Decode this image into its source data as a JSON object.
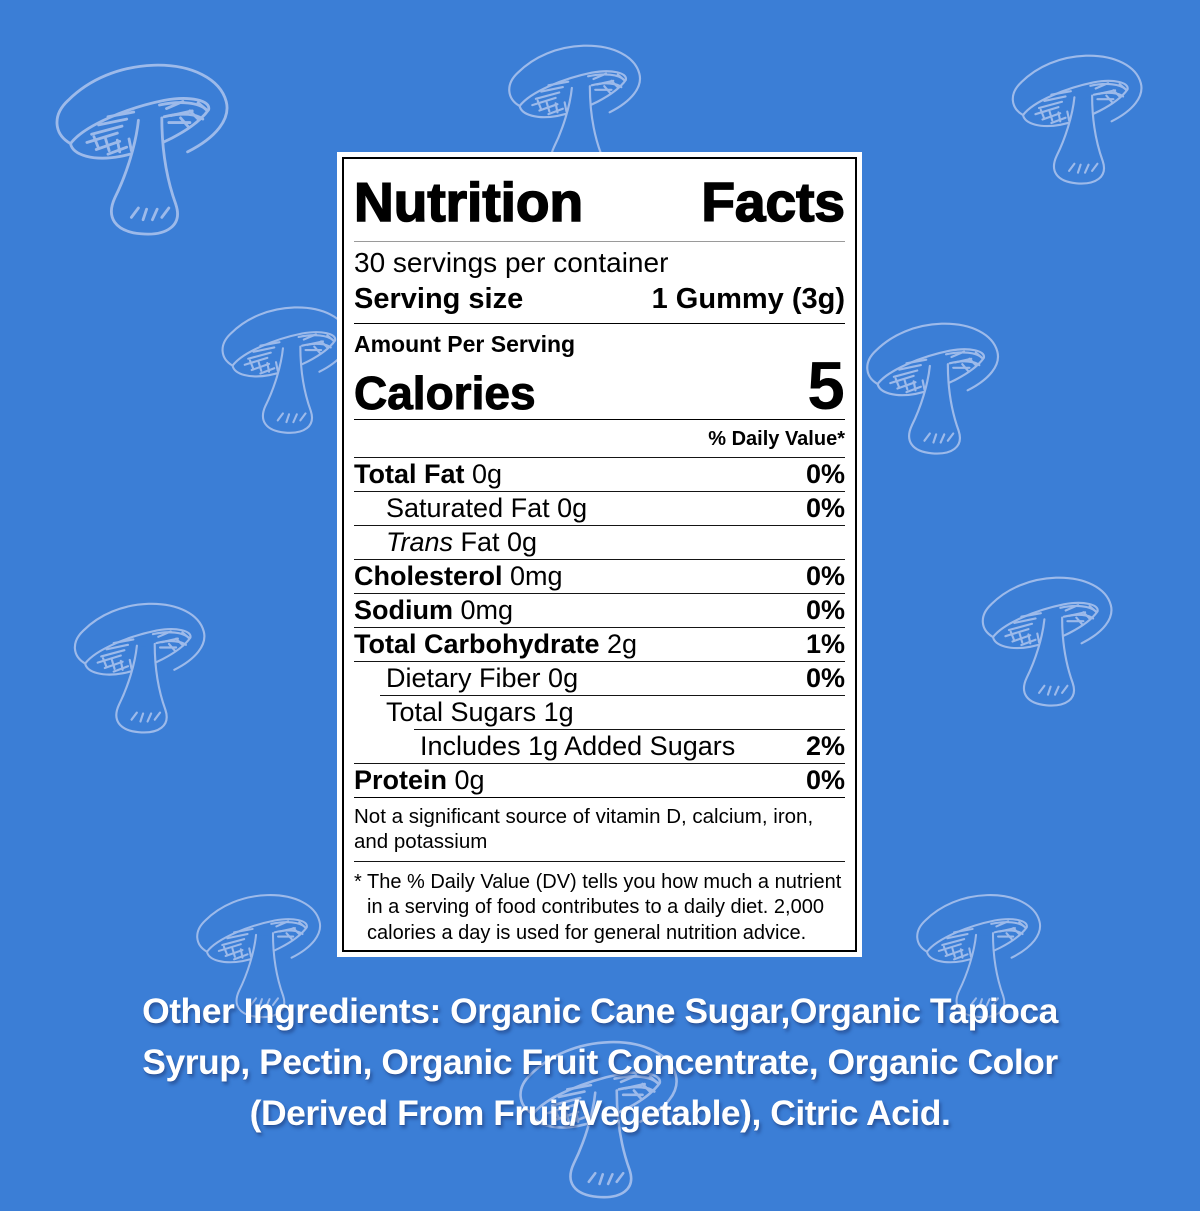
{
  "background": {
    "color": "#3b7ed6",
    "pattern_icon": "mushroom-icon"
  },
  "label": {
    "title": "Nutrition Facts",
    "servings_per_container": "30 servings per container",
    "serving_size_label": "Serving size",
    "serving_size_value": "1 Gummy (3g)",
    "amount_per_serving": "Amount Per Serving",
    "calories_label": "Calories",
    "calories_value": "5",
    "daily_value_header": "% Daily Value*",
    "rows": [
      {
        "label": "Total Fat",
        "amount": "0g",
        "dv": "0%",
        "style": "bold",
        "indent": 0,
        "rule_indent": 0
      },
      {
        "label": "Saturated Fat",
        "amount": "0g",
        "dv": "0%",
        "style": "plain",
        "indent": 1,
        "rule_indent": 0
      },
      {
        "label": "Trans Fat",
        "amount": "0g",
        "dv": "",
        "style": "italic-first-word",
        "indent": 1,
        "rule_indent": 0
      },
      {
        "label": "Cholesterol",
        "amount": "0mg",
        "dv": "0%",
        "style": "bold",
        "indent": 0,
        "rule_indent": 0
      },
      {
        "label": "Sodium",
        "amount": "0mg",
        "dv": "0%",
        "style": "bold",
        "indent": 0,
        "rule_indent": 0
      },
      {
        "label": "Total Carbohydrate",
        "amount": "2g",
        "dv": "1%",
        "style": "bold",
        "indent": 0,
        "rule_indent": 0
      },
      {
        "label": "Dietary Fiber",
        "amount": "0g",
        "dv": "0%",
        "style": "plain",
        "indent": 1,
        "rule_indent": 0
      },
      {
        "label": "Total Sugars",
        "amount": "1g",
        "dv": "",
        "style": "plain",
        "indent": 1,
        "rule_indent": 1
      },
      {
        "label": "Includes 1g Added Sugars",
        "amount": "",
        "dv": "2%",
        "style": "plain",
        "indent": 2,
        "rule_indent": 2
      },
      {
        "label": "Protein",
        "amount": "0g",
        "dv": "0%",
        "style": "bold",
        "indent": 0,
        "rule_indent": 0
      }
    ],
    "not_significant": "Not a significant source of vitamin D, calcium, iron, and potassium",
    "footnote_marker": "*",
    "footnote": "The % Daily Value (DV) tells you how much a nutrient in a serving of food contributes to a daily diet. 2,000 calories a day is used for general nutrition advice."
  },
  "ingredients": {
    "lines": [
      "Other Ingredients: Organic Cane Sugar,Organic Tapioca",
      "Syrup, Pectin, Organic Fruit Concentrate, Organic Color",
      "(Derived From Fruit/Vegetable), Citric Acid."
    ]
  }
}
